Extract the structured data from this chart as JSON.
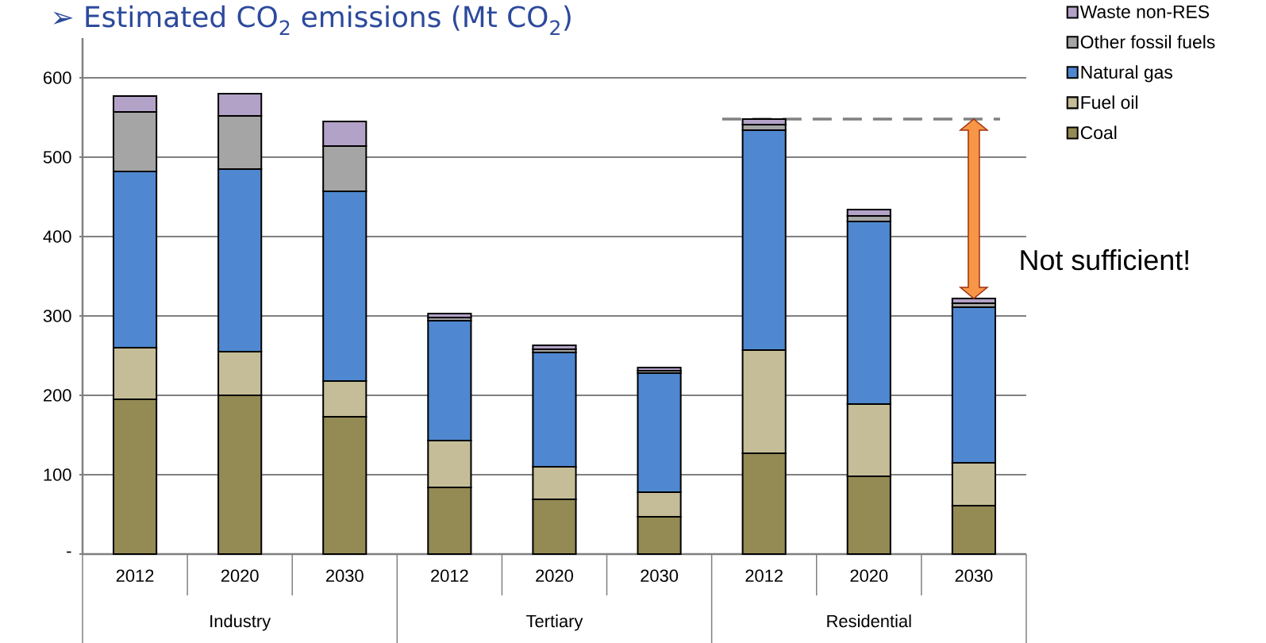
{
  "chart_data": {
    "type": "bar",
    "stacked": true,
    "title": "➢ Estimated CO$_{2}$ emissions (Mt CO$_{2}$)",
    "categories": [
      "2012",
      "2020",
      "2030",
      "2012",
      "2020",
      "2030",
      "2012",
      "2020",
      "2030"
    ],
    "series": [
      {
        "name": "Coal",
        "color": "#948a54",
        "values": [
          195,
          200,
          173,
          84,
          69,
          47,
          127,
          98,
          61
        ]
      },
      {
        "name": "Fuel oil",
        "color": "#c4bd97",
        "values": [
          65,
          55,
          45,
          59,
          41,
          31,
          130,
          91,
          54
        ]
      },
      {
        "name": "Natural gas",
        "color": "#4f88d0",
        "values": [
          222,
          230,
          239,
          151,
          144,
          150,
          277,
          230,
          196
        ]
      },
      {
        "name": "Other fossil fuels",
        "color": "#a5a5a5",
        "values": [
          75,
          67,
          57,
          4,
          4,
          3,
          7,
          7,
          5
        ]
      },
      {
        "name": "Waste non-RES",
        "color": "#b3a2c7",
        "values": [
          20,
          28,
          31,
          5,
          5,
          4,
          7,
          8,
          6
        ]
      }
    ],
    "ylim": [
      0,
      650
    ],
    "yticks": [
      {
        "value": 0,
        "label": "-"
      },
      100,
      200,
      300,
      400,
      500,
      600
    ],
    "grid": "y",
    "legend": "top right",
    "ref_lines": [
      {
        "axis": "y",
        "value": 548,
        "color": "#808080",
        "line_style": "dashed"
      }
    ],
    "annotations": [
      "Industry",
      "Tertiary",
      "Residential",
      "Not sufficient!"
    ]
  }
}
